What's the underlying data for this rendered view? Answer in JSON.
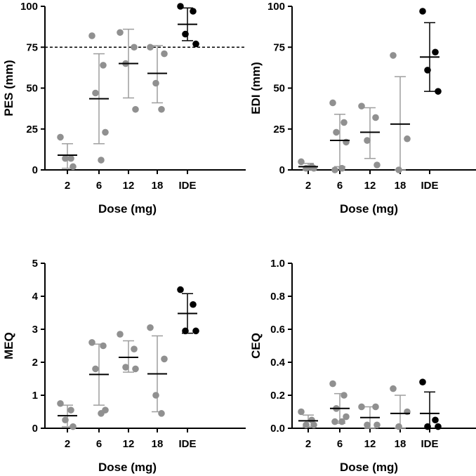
{
  "colors": {
    "group_points": "#909090",
    "reference_points": "#000000",
    "error_bars": "#9e9e9e",
    "mean_line": "#000000"
  },
  "chart_data": [
    {
      "id": "pes",
      "type": "scatter",
      "ylabel": "PES (mm)",
      "xlabel": "Dose (mg)",
      "categories": [
        "2",
        "6",
        "12",
        "18",
        "IDE"
      ],
      "ylim": [
        0,
        100
      ],
      "yticks": [
        "0",
        "25",
        "50",
        "75",
        "100"
      ],
      "reference_line": 75,
      "groups": [
        {
          "points": [
            20,
            7,
            7,
            2
          ],
          "mean": 9,
          "sd_low": 1,
          "sd_high": 16
        },
        {
          "points": [
            82,
            64,
            47,
            23,
            6
          ],
          "mean": 43.5,
          "sd_low": 16,
          "sd_high": 71
        },
        {
          "points": [
            84,
            75,
            65,
            37
          ],
          "mean": 65,
          "sd_low": 44,
          "sd_high": 86
        },
        {
          "points": [
            75,
            71,
            53,
            37
          ],
          "mean": 59,
          "sd_low": 41,
          "sd_high": 76
        },
        {
          "points": [
            100,
            97,
            83,
            77
          ],
          "mean": 89,
          "sd_low": 79,
          "sd_high": 99
        }
      ]
    },
    {
      "id": "edi",
      "type": "scatter",
      "ylabel": "EDI (mm)",
      "xlabel": "Dose (mg)",
      "categories": [
        "2",
        "6",
        "12",
        "18",
        "IDE"
      ],
      "ylim": [
        0,
        100
      ],
      "yticks": [
        "0",
        "25",
        "50",
        "75",
        "100"
      ],
      "groups": [
        {
          "points": [
            5,
            2,
            1,
            1
          ],
          "mean": 2,
          "sd_low": 0,
          "sd_high": 4
        },
        {
          "points": [
            41,
            29,
            23,
            17,
            1,
            0
          ],
          "mean": 18,
          "sd_low": 2,
          "sd_high": 34
        },
        {
          "points": [
            39,
            32,
            18,
            3
          ],
          "mean": 23,
          "sd_low": 7,
          "sd_high": 38
        },
        {
          "points": [
            70,
            19,
            0
          ],
          "mean": 28,
          "sd_low": 0,
          "sd_high": 57
        },
        {
          "points": [
            97,
            72,
            61,
            48
          ],
          "mean": 69,
          "sd_low": 48,
          "sd_high": 90
        }
      ]
    },
    {
      "id": "meq",
      "type": "scatter",
      "ylabel": "MEQ",
      "xlabel": "Dose (mg)",
      "categories": [
        "2",
        "6",
        "12",
        "18",
        "IDE"
      ],
      "ylim": [
        0,
        5
      ],
      "yticks": [
        "0",
        "1",
        "2",
        "3",
        "4",
        "5"
      ],
      "groups": [
        {
          "points": [
            0.75,
            0.55,
            0.25,
            0.05
          ],
          "mean": 0.38,
          "sd_low": 0.05,
          "sd_high": 0.7
        },
        {
          "points": [
            2.6,
            2.5,
            1.8,
            0.55,
            0.45
          ],
          "mean": 1.63,
          "sd_low": 0.7,
          "sd_high": 2.55
        },
        {
          "points": [
            2.85,
            2.4,
            1.85,
            1.8
          ],
          "mean": 2.15,
          "sd_low": 1.7,
          "sd_high": 2.65
        },
        {
          "points": [
            3.05,
            2.1,
            1.0,
            0.45
          ],
          "mean": 1.65,
          "sd_low": 0.5,
          "sd_high": 2.8
        },
        {
          "points": [
            4.2,
            3.75,
            2.95,
            2.95
          ],
          "mean": 3.48,
          "sd_low": 2.88,
          "sd_high": 4.08
        }
      ]
    },
    {
      "id": "ceq",
      "type": "scatter",
      "ylabel": "CEQ",
      "xlabel": "Dose (mg)",
      "categories": [
        "2",
        "6",
        "12",
        "18",
        "IDE"
      ],
      "ylim": [
        0,
        1.0
      ],
      "yticks": [
        "0.0",
        "0.2",
        "0.4",
        "0.6",
        "0.8",
        "1.0"
      ],
      "groups": [
        {
          "points": [
            0.1,
            0.05,
            0.02,
            0.02
          ],
          "mean": 0.045,
          "sd_low": 0.01,
          "sd_high": 0.08
        },
        {
          "points": [
            0.27,
            0.2,
            0.12,
            0.07,
            0.04,
            0.04
          ],
          "mean": 0.12,
          "sd_low": 0.03,
          "sd_high": 0.21
        },
        {
          "points": [
            0.13,
            0.13,
            0.02,
            0.02
          ],
          "mean": 0.065,
          "sd_low": 0.0,
          "sd_high": 0.13
        },
        {
          "points": [
            0.24,
            0.1,
            0.01
          ],
          "mean": 0.09,
          "sd_low": 0.0,
          "sd_high": 0.2
        },
        {
          "points": [
            0.28,
            0.05,
            0.01,
            0.01
          ],
          "mean": 0.09,
          "sd_low": 0.0,
          "sd_high": 0.22
        }
      ]
    }
  ]
}
